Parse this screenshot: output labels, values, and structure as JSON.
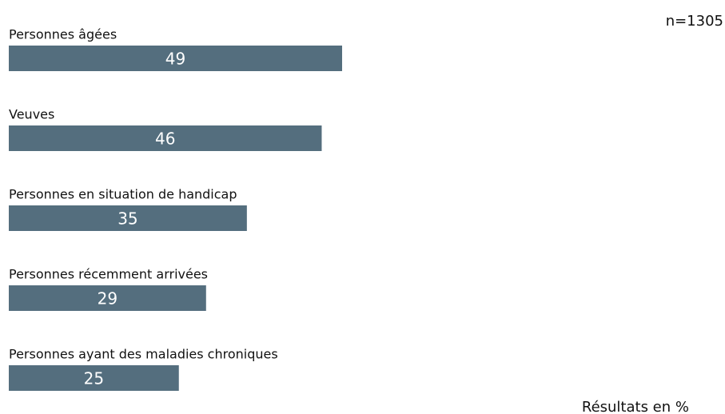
{
  "chart_data": {
    "type": "bar",
    "orientation": "horizontal",
    "subtitle": "n=1305",
    "note": "Résultats en %",
    "categories": [
      "Personnes âgées",
      "Veuves",
      "Personnes en situation de handicap",
      "Personnes récemment arrivées",
      "Personnes ayant des maladies chroniques"
    ],
    "values": [
      49,
      46,
      35,
      29,
      25
    ],
    "color": "#546e7e"
  }
}
